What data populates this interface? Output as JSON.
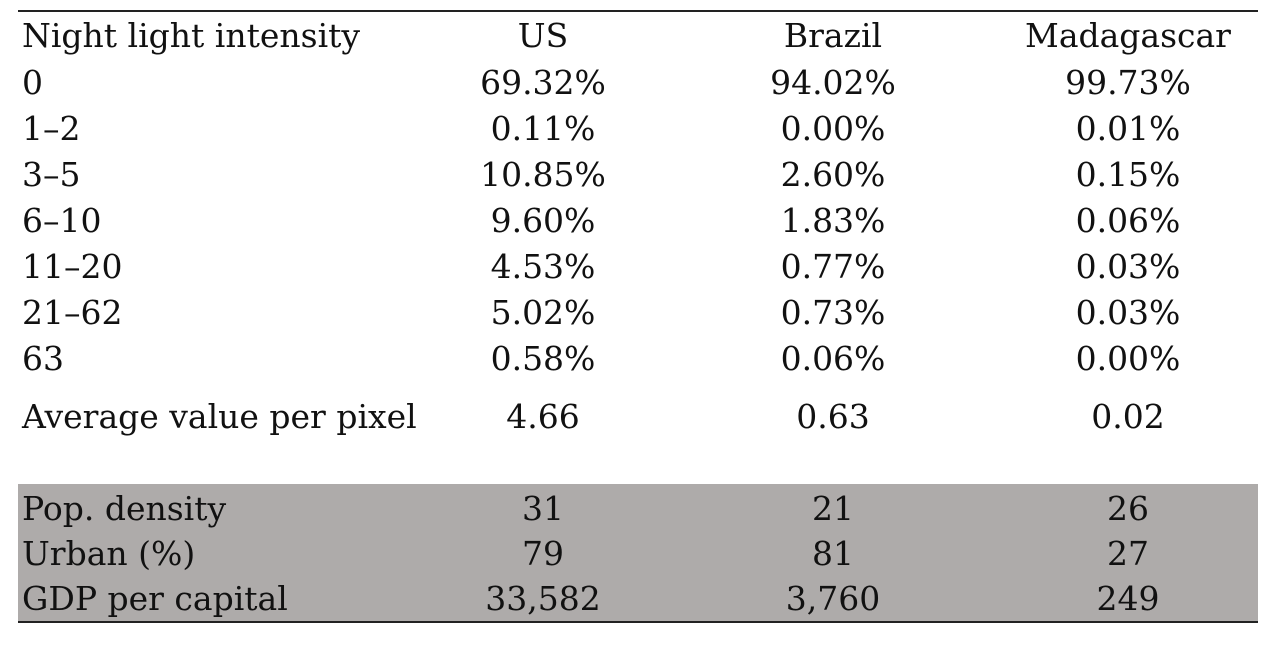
{
  "header": {
    "label": "Night light intensity",
    "countries": [
      "US",
      "Brazil",
      "Madagascar"
    ]
  },
  "rows": [
    {
      "label": "0",
      "us": "69.32%",
      "brazil": "94.02%",
      "madagascar": "99.73%"
    },
    {
      "label": "1–2",
      "us": "0.11%",
      "brazil": "0.00%",
      "madagascar": "0.01%"
    },
    {
      "label": "3–5",
      "us": "10.85%",
      "brazil": "2.60%",
      "madagascar": "0.15%"
    },
    {
      "label": "6–10",
      "us": "9.60%",
      "brazil": "1.83%",
      "madagascar": "0.06%"
    },
    {
      "label": "11–20",
      "us": "4.53%",
      "brazil": "0.77%",
      "madagascar": "0.03%"
    },
    {
      "label": "21–62",
      "us": "5.02%",
      "brazil": "0.73%",
      "madagascar": "0.03%"
    },
    {
      "label": "63",
      "us": "0.58%",
      "brazil": "0.06%",
      "madagascar": "0.00%"
    }
  ],
  "average": {
    "label": "Average value per pixel",
    "us": "4.66",
    "brazil": "0.63",
    "madagascar": "0.02"
  },
  "indicators": [
    {
      "label": "Pop. density",
      "us": "31",
      "brazil": "21",
      "madagascar": "26"
    },
    {
      "label": "Urban (%)",
      "us": "79",
      "brazil": "81",
      "madagascar": "27"
    },
    {
      "label": "GDP per capital",
      "us": "33,582",
      "brazil": "3,760",
      "madagascar": "249"
    }
  ],
  "colors": {
    "shaded_background": "#aeabaa",
    "rule": "#222222"
  }
}
